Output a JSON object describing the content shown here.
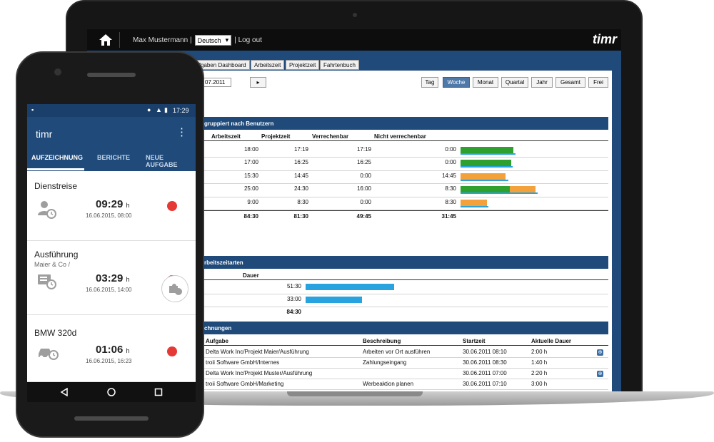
{
  "laptop": {
    "user_name": "Max Mustermann |",
    "language": "Deutsch",
    "logout": "| Log out",
    "brand": "timr",
    "tabs": [
      "Aufgaben Dashboard",
      "Arbeitszeit",
      "Projektzeit",
      "Fahrtenbuch"
    ],
    "date_value": "07.2011",
    "nav_next": "▸",
    "periods": [
      "Tag",
      "Woche",
      "Monat",
      "Quartal",
      "Jahr",
      "Gesamt",
      "Frei"
    ],
    "active_period": "Woche",
    "users_section": {
      "header": "gruppiert nach Benutzern",
      "columns": [
        "Arbeitszeit",
        "Projektzeit",
        "Verrechenbar",
        "Nicht verrechenbar"
      ],
      "rows": [
        {
          "arbeitszeit": "18:00",
          "projektzeit": "17:19",
          "verrechenbar": "17:19",
          "nicht": "0:00"
        },
        {
          "arbeitszeit": "17:00",
          "projektzeit": "16:25",
          "verrechenbar": "16:25",
          "nicht": "0:00"
        },
        {
          "arbeitszeit": "15:30",
          "projektzeit": "14:45",
          "verrechenbar": "0:00",
          "nicht": "14:45"
        },
        {
          "arbeitszeit": "25:00",
          "projektzeit": "24:30",
          "verrechenbar": "16:00",
          "nicht": "8:30"
        },
        {
          "arbeitszeit": "9:00",
          "projektzeit": "8:30",
          "verrechenbar": "0:00",
          "nicht": "8:30"
        }
      ],
      "totals": {
        "arbeitszeit": "84:30",
        "projektzeit": "81:30",
        "verrechenbar": "49:45",
        "nicht": "31:45"
      }
    },
    "types_section": {
      "header": "rbeitszeitarten",
      "column": "Dauer",
      "rows": [
        "51:30",
        "33:00"
      ],
      "total": "84:30"
    },
    "records_section": {
      "header": "chnungen",
      "columns": [
        "Aufgabe",
        "Beschreibung",
        "Startzeit",
        "Aktuelle Dauer"
      ],
      "rows": [
        {
          "aufgabe": "Delta Work Inc/Projekt Maier/Ausführung",
          "beschreibung": "Arbeiten vor Ort ausführen",
          "startzeit": "30.06.2011 08:10",
          "dauer": "2:00 h"
        },
        {
          "aufgabe": "troii Software GmbH/Internes",
          "beschreibung": "Zahlungseingang",
          "startzeit": "30.06.2011 08:30",
          "dauer": "1:40 h"
        },
        {
          "aufgabe": "Delta Work Inc/Projekt Muster/Ausführung",
          "beschreibung": "",
          "startzeit": "30.06.2011 07:00",
          "dauer": "2:20 h"
        },
        {
          "aufgabe": "troii Software GmbH/Marketing",
          "beschreibung": "Werbeaktion planen",
          "startzeit": "30.06.2011 07:10",
          "dauer": "3:00 h"
        }
      ]
    }
  },
  "phone": {
    "status_time": "17:29",
    "app_title": "timr",
    "tabs": [
      "AUFZEICHNUNG",
      "BERICHTE",
      "NEUE AUFGABE"
    ],
    "cards": [
      {
        "title": "Dienstreise",
        "subtitle": "",
        "time": "09:29",
        "unit": "h",
        "date": "16.06.2015, 08:00"
      },
      {
        "title": "Ausführung",
        "subtitle": "Maier & Co /",
        "time": "03:29",
        "unit": "h",
        "date": "16.06.2015, 14:00"
      },
      {
        "title": "BMW 320d",
        "subtitle": "",
        "time": "01:06",
        "unit": "h",
        "date": "16.06.2015, 16:23"
      }
    ]
  },
  "colors": {
    "brand_blue": "#1f4a7a",
    "green": "#2ea02e",
    "orange": "#f3a13a",
    "blue": "#29a3df",
    "red": "#e53935"
  }
}
